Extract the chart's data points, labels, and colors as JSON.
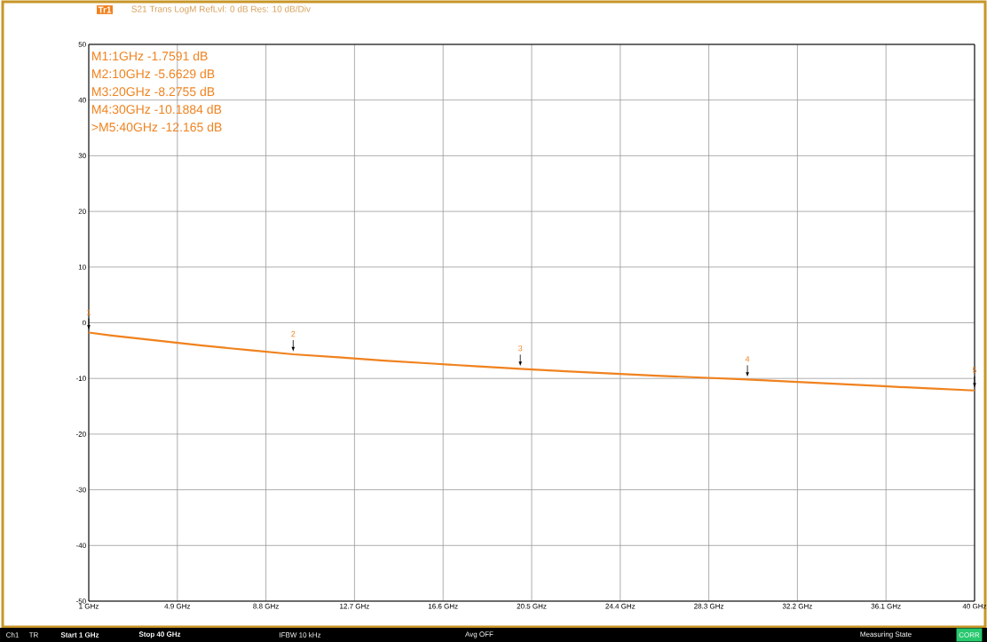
{
  "chart_data": {
    "type": "line",
    "title": "S21 Trans LogM RefLvl: 0  dB Res: 10  dB/Div",
    "x": [
      1,
      2,
      4,
      6,
      8,
      10,
      12,
      14,
      16,
      18,
      20,
      22,
      24,
      26,
      28,
      30,
      32,
      34,
      36,
      38,
      40
    ],
    "series": [
      {
        "color": "#f0821e",
        "values": [
          -1.7591,
          -2.3,
          -3.2,
          -4.1,
          -4.9,
          -5.6629,
          -6.2,
          -6.8,
          -7.3,
          -7.8,
          -8.2755,
          -8.7,
          -9.1,
          -9.5,
          -9.85,
          -10.1884,
          -10.6,
          -11.0,
          -11.4,
          -11.8,
          -12.165
        ]
      }
    ],
    "xlim": [
      1,
      40
    ],
    "ylim": [
      -50,
      50
    ],
    "xticks": [
      {
        "value": 1,
        "label": "1 GHz"
      },
      {
        "value": 4.9,
        "label": "4.9 GHz"
      },
      {
        "value": 8.8,
        "label": "8.8 GHz"
      },
      {
        "value": 12.7,
        "label": "12.7 GHz"
      },
      {
        "value": 16.6,
        "label": "16.6 GHz"
      },
      {
        "value": 20.5,
        "label": "20.5 GHz"
      },
      {
        "value": 24.4,
        "label": "24.4 GHz"
      },
      {
        "value": 28.3,
        "label": "28.3 GHz"
      },
      {
        "value": 32.2,
        "label": "32.2 GHz"
      },
      {
        "value": 36.1,
        "label": "36.1 GHz"
      },
      {
        "value": 40,
        "label": "40 GHz"
      }
    ],
    "yticks": [
      -50,
      -40,
      -30,
      -20,
      -10,
      0,
      10,
      20,
      30,
      40,
      50
    ],
    "grid": true,
    "marker": "none",
    "line_style": "solid",
    "annotations": [
      {
        "text": "1",
        "x": 1,
        "y": -1.7591
      },
      {
        "text": "2",
        "x": 10,
        "y": -5.6629
      },
      {
        "text": "3",
        "x": 20,
        "y": -8.2755
      },
      {
        "text": "4",
        "x": 30,
        "y": -10.1884
      },
      {
        "text": "5",
        "x": 40,
        "y": -12.165
      },
      "Tr1",
      "M1:1GHz  -1.7591  dB",
      "M2:10GHz  -5.6629  dB",
      "M3:20GHz  -8.2755  dB",
      "M4:30GHz  -10.1884  dB",
      ">M5:40GHz  -12.165  dB",
      "Ch1",
      "TR",
      "Start 1 GHz",
      "Stop 40 GHz",
      "IFBW 10 kHz",
      "Avg OFF",
      "Measuring State",
      "CORR"
    ]
  }
}
